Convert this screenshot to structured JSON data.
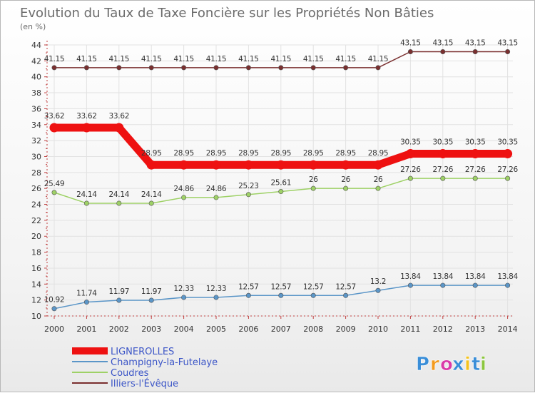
{
  "chart_data": {
    "type": "line",
    "title": "Evolution du Taux de Taxe Foncière sur les Propriétés Non Bâties",
    "subtitle": "(en %)",
    "xlabel": "",
    "ylabel": "",
    "categories": [
      "2000",
      "2001",
      "2002",
      "2003",
      "2004",
      "2005",
      "2006",
      "2007",
      "2008",
      "2009",
      "2010",
      "2011",
      "2012",
      "2013",
      "2014"
    ],
    "yticks": [
      "10",
      "12",
      "14",
      "16",
      "18",
      "20",
      "22",
      "24",
      "26",
      "28",
      "30",
      "32",
      "34",
      "36",
      "38",
      "40",
      "42",
      "44"
    ],
    "ylim": [
      10,
      44
    ],
    "grid": true,
    "legend_position": "bottom-left",
    "series": [
      {
        "name": "Illiers-l'Évêque",
        "color": "#7a2f2f",
        "values": [
          41.15,
          41.15,
          41.15,
          41.15,
          41.15,
          41.15,
          41.15,
          41.15,
          41.15,
          41.15,
          41.15,
          43.15,
          43.15,
          43.15,
          43.15
        ],
        "labels": [
          "41.15",
          "41.15",
          "41.15",
          "41.15",
          "41.15",
          "41.15",
          "41.15",
          "41.15",
          "41.15",
          "41.15",
          "41.15",
          "43.15",
          "43.15",
          "43.15",
          "43.15"
        ]
      },
      {
        "name": "LIGNEROLLES",
        "color": "#ee1111",
        "values": [
          33.62,
          33.62,
          33.62,
          28.95,
          28.95,
          28.95,
          28.95,
          28.95,
          28.95,
          28.95,
          28.95,
          30.35,
          30.35,
          30.35,
          30.35
        ],
        "labels": [
          "33.62",
          "33.62",
          "33.62",
          "28.95",
          "28.95",
          "28.95",
          "28.95",
          "28.95",
          "28.95",
          "28.95",
          "28.95",
          "30.35",
          "30.35",
          "30.35",
          "30.35"
        ]
      },
      {
        "name": "Coudres",
        "color": "#9ed166",
        "values": [
          25.49,
          24.14,
          24.14,
          24.14,
          24.86,
          24.86,
          25.23,
          25.61,
          26,
          26,
          26,
          27.26,
          27.26,
          27.26,
          27.26
        ],
        "labels": [
          "25.49",
          "24.14",
          "24.14",
          "24.14",
          "24.86",
          "24.86",
          "25.23",
          "25.61",
          "26",
          "26",
          "26",
          "27.26",
          "27.26",
          "27.26",
          "27.26"
        ]
      },
      {
        "name": "Champigny-la-Futelaye",
        "color": "#5b96c8",
        "values": [
          10.92,
          11.74,
          11.97,
          11.97,
          12.33,
          12.33,
          12.57,
          12.57,
          12.57,
          12.57,
          13.2,
          13.84,
          13.84,
          13.84,
          13.84
        ],
        "labels": [
          "10.92",
          "11.74",
          "11.97",
          "11.97",
          "12.33",
          "12.33",
          "12.57",
          "12.57",
          "12.57",
          "12.57",
          "13.2",
          "13.84",
          "13.84",
          "13.84",
          "13.84"
        ]
      }
    ],
    "legend": [
      {
        "name": "LIGNEROLLES",
        "color": "#ee1111"
      },
      {
        "name": "Champigny-la-Futelaye",
        "color": "#5b96c8"
      },
      {
        "name": "Coudres",
        "color": "#9ed166"
      },
      {
        "name": "Illiers-l'Évêque",
        "color": "#7a2f2f"
      }
    ]
  },
  "branding": {
    "logo_text": "Proxiti",
    "letters": [
      "P",
      "r",
      "o",
      "x",
      "i",
      "t",
      "i"
    ],
    "letter_colors": [
      "#3a8ed8",
      "#f39a1e",
      "#d93aa8",
      "#3a8ed8",
      "#f3c21e",
      "#3a8ed8",
      "#8cc63f"
    ]
  }
}
